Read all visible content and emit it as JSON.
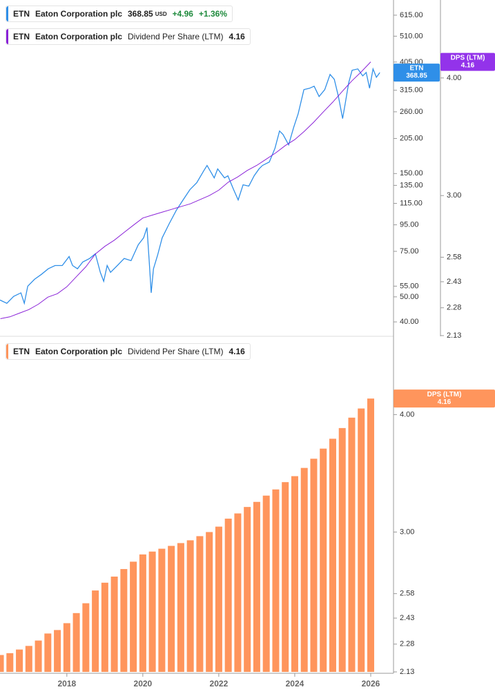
{
  "chart_data": [
    {
      "type": "line",
      "legend": {
        "symbol": "ETN",
        "name": "Eaton Corporation plc",
        "currency": "USD",
        "change": "+4.96",
        "change_pct": "+1.36%",
        "dps_label": "Dividend Per Share (LTM)"
      },
      "xlim": [
        2016.24,
        2026.6
      ],
      "log": true,
      "ylim": [
        35.4,
        704
      ],
      "yticks": [
        {
          "value": 615,
          "label": "615.00"
        },
        {
          "value": 510,
          "label": "510.00"
        },
        {
          "value": 405,
          "label": "405.00"
        },
        {
          "value": 315,
          "label": "315.00"
        },
        {
          "value": 260,
          "label": "260.00"
        },
        {
          "value": 205,
          "label": "205.00"
        },
        {
          "value": 150,
          "label": "150.00"
        },
        {
          "value": 135,
          "label": "135.00"
        },
        {
          "value": 115,
          "label": "115.00"
        },
        {
          "value": 95,
          "label": "95.00"
        },
        {
          "value": 75,
          "label": "75.00"
        },
        {
          "value": 55,
          "label": "55.00"
        },
        {
          "value": 50,
          "label": "50.00"
        },
        {
          "value": 40,
          "label": "40.00"
        }
      ],
      "y2lim": [
        2.13,
        4.84
      ],
      "y2ticks": [
        {
          "value": 4,
          "label": "4.00"
        },
        {
          "value": 3,
          "label": "3.00"
        },
        {
          "value": 2.58,
          "label": "2.58"
        },
        {
          "value": 2.43,
          "label": "2.43"
        },
        {
          "value": 2.28,
          "label": "2.28"
        },
        {
          "value": 2.13,
          "label": "2.13"
        }
      ],
      "series": [
        {
          "name": "ETN",
          "color": "#2f8fe8",
          "x": [
            2016.24,
            2016.42,
            2016.6,
            2016.79,
            2016.88,
            2016.97,
            2017.15,
            2017.33,
            2017.51,
            2017.69,
            2017.88,
            2018.06,
            2018.15,
            2018.28,
            2018.42,
            2018.6,
            2018.75,
            2018.88,
            2018.97,
            2019.06,
            2019.15,
            2019.33,
            2019.51,
            2019.69,
            2019.88,
            2020.02,
            2020.11,
            2020.17,
            2020.22,
            2020.28,
            2020.39,
            2020.51,
            2020.69,
            2020.88,
            2021.06,
            2021.24,
            2021.42,
            2021.6,
            2021.69,
            2021.88,
            2021.97,
            2022.15,
            2022.24,
            2022.39,
            2022.51,
            2022.64,
            2022.79,
            2022.93,
            2023.06,
            2023.15,
            2023.33,
            2023.48,
            2023.6,
            2023.69,
            2023.84,
            2023.97,
            2024.09,
            2024.24,
            2024.39,
            2024.51,
            2024.64,
            2024.79,
            2024.93,
            2025.04,
            2025.15,
            2025.26,
            2025.33,
            2025.42,
            2025.51,
            2025.66,
            2025.79,
            2025.88,
            2025.97,
            2026.06,
            2026.15,
            2026.24
          ],
          "values": [
            48.6,
            47.2,
            50.2,
            51.8,
            47.2,
            55.0,
            58.5,
            61.1,
            64.2,
            66.1,
            66.1,
            71.6,
            66.1,
            64.2,
            68.2,
            70.4,
            73.4,
            62.2,
            57.4,
            66.1,
            62.2,
            66.1,
            70.4,
            69.0,
            79.6,
            84.6,
            92.7,
            68.2,
            51.8,
            64.2,
            72.5,
            84.6,
            95.6,
            108,
            118.6,
            130,
            138.2,
            153.4,
            161.2,
            144.3,
            156.3,
            144.3,
            147,
            130,
            118.6,
            135.7,
            134.1,
            147,
            156.3,
            161.2,
            166.2,
            187.9,
            219.1,
            212.5,
            193.8,
            226,
            255.5,
            316.8,
            320.7,
            326.6,
            297.9,
            316.8,
            362.7,
            347.5,
            297.9,
            244.8,
            280.3,
            336.8,
            376.3,
            380.9,
            358.1,
            369.3,
            320.7,
            380.9,
            353.7,
            368.85
          ]
        },
        {
          "name": "DPS (LTM)",
          "color": "#8a22d8",
          "tag_color": "#9333ea",
          "axis": "y2",
          "x": [
            2016.25,
            2016.5,
            2016.75,
            2017,
            2017.25,
            2017.5,
            2017.75,
            2018,
            2018.25,
            2018.5,
            2018.75,
            2019,
            2019.25,
            2019.5,
            2019.75,
            2020,
            2020.25,
            2020.5,
            2020.75,
            2021,
            2021.25,
            2021.5,
            2021.75,
            2022,
            2022.25,
            2022.5,
            2022.75,
            2023,
            2023.25,
            2023.5,
            2023.75,
            2024,
            2024.25,
            2024.5,
            2024.75,
            2025,
            2025.25,
            2025.5,
            2025.75,
            2026
          ],
          "values": [
            2.22,
            2.23,
            2.25,
            2.27,
            2.3,
            2.34,
            2.36,
            2.4,
            2.46,
            2.52,
            2.6,
            2.65,
            2.69,
            2.74,
            2.79,
            2.84,
            2.86,
            2.88,
            2.9,
            2.92,
            2.94,
            2.97,
            3.0,
            3.04,
            3.1,
            3.14,
            3.19,
            3.23,
            3.28,
            3.33,
            3.39,
            3.44,
            3.51,
            3.59,
            3.68,
            3.77,
            3.87,
            3.97,
            4.06,
            4.16
          ]
        }
      ]
    },
    {
      "type": "bar",
      "legend": {
        "symbol": "ETN",
        "name": "Eaton Corporation plc",
        "dps_label": "Dividend Per Share (LTM)"
      },
      "xlim": [
        2016.24,
        2026.6
      ],
      "xticks": [
        2018,
        2020,
        2022,
        2024,
        2026
      ],
      "log": true,
      "ylim": [
        2.13,
        4.78
      ],
      "yticks": [
        {
          "value": 4,
          "label": "4.00"
        },
        {
          "value": 3,
          "label": "3.00"
        },
        {
          "value": 2.58,
          "label": "2.58"
        },
        {
          "value": 2.43,
          "label": "2.43"
        },
        {
          "value": 2.28,
          "label": "2.28"
        },
        {
          "value": 2.13,
          "label": "2.13"
        }
      ],
      "series": [
        {
          "name": "DPS (LTM)",
          "color": "#ff955c",
          "x": [
            2016.25,
            2016.5,
            2016.75,
            2017,
            2017.25,
            2017.5,
            2017.75,
            2018,
            2018.25,
            2018.5,
            2018.75,
            2019,
            2019.25,
            2019.5,
            2019.75,
            2020,
            2020.25,
            2020.5,
            2020.75,
            2021,
            2021.25,
            2021.5,
            2021.75,
            2022,
            2022.25,
            2022.5,
            2022.75,
            2023,
            2023.25,
            2023.5,
            2023.75,
            2024,
            2024.25,
            2024.5,
            2024.75,
            2025,
            2025.25,
            2025.5,
            2025.75,
            2026
          ],
          "values": [
            2.22,
            2.23,
            2.25,
            2.27,
            2.3,
            2.34,
            2.36,
            2.4,
            2.46,
            2.52,
            2.6,
            2.65,
            2.69,
            2.74,
            2.79,
            2.84,
            2.86,
            2.88,
            2.9,
            2.92,
            2.94,
            2.97,
            3.0,
            3.04,
            3.1,
            3.14,
            3.19,
            3.23,
            3.28,
            3.33,
            3.39,
            3.44,
            3.51,
            3.59,
            3.68,
            3.77,
            3.87,
            3.97,
            4.06,
            4.16
          ]
        }
      ]
    }
  ]
}
